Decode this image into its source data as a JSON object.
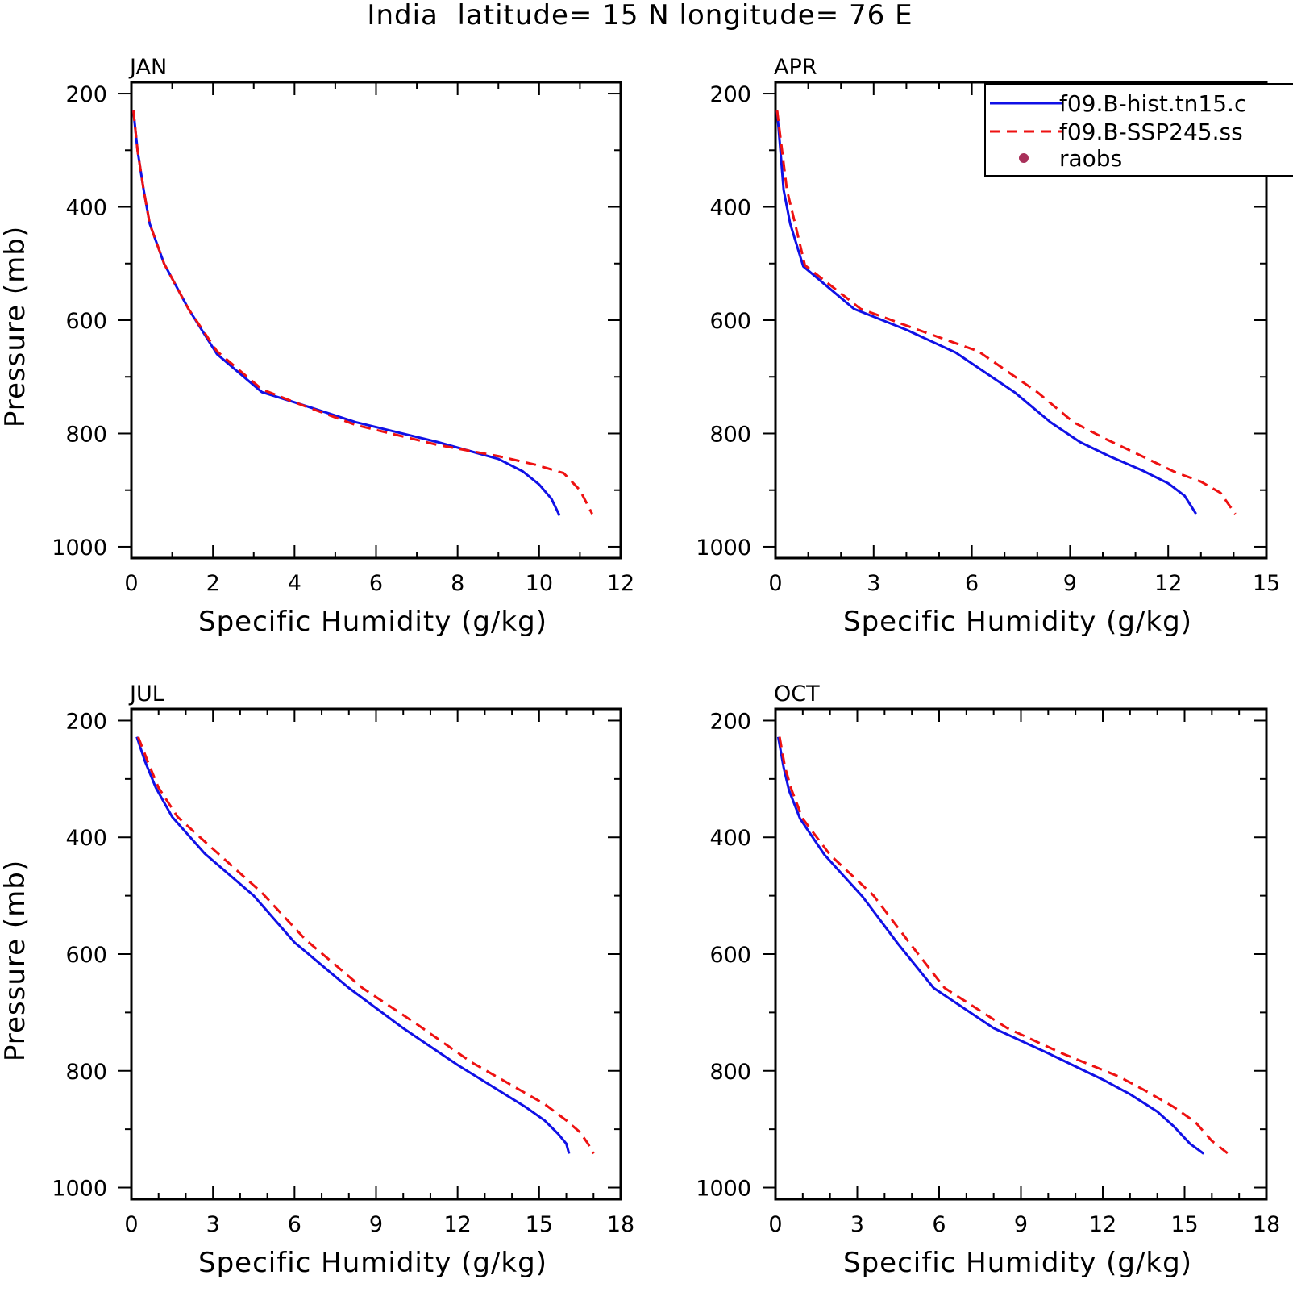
{
  "figure": {
    "title": "India  latitude= 15 N longitude= 76 E",
    "legend": {
      "placement": "top-right of APR panel (clipped at right edge)",
      "entries": [
        {
          "label": "f09.B-hist.tn15.c",
          "style": "solid",
          "color": "#1010e6"
        },
        {
          "label": "f09.B-SSP245.ss",
          "style": "dashed",
          "color": "#ee1111"
        },
        {
          "label": "raobs",
          "style": "dot",
          "color": "#a8305a"
        }
      ]
    }
  },
  "chart_data": [
    {
      "type": "line",
      "panel_label": "JAN",
      "xlabel": "Specific Humidity (g/kg)",
      "ylabel": "Pressure (mb)",
      "xlim": [
        0,
        12
      ],
      "xticks": [
        0,
        2,
        4,
        6,
        8,
        10,
        12
      ],
      "ylim": [
        200,
        1000
      ],
      "yticks": [
        200,
        400,
        600,
        800,
        1000
      ],
      "y_inverted": true,
      "series": [
        {
          "name": "f09.B-hist.tn15.c",
          "style": "solid",
          "color": "#1010e6",
          "x": [
            0.05,
            0.15,
            0.3,
            0.45,
            0.8,
            1.4,
            2.1,
            3.2,
            4.0,
            5.5,
            7.5,
            9.0,
            9.6,
            10.0,
            10.3,
            10.5
          ],
          "y": [
            230,
            300,
            370,
            430,
            500,
            580,
            660,
            727,
            745,
            780,
            815,
            845,
            867,
            890,
            915,
            945
          ]
        },
        {
          "name": "f09.B-SSP245.ss",
          "style": "dashed",
          "color": "#ee1111",
          "x": [
            0.05,
            0.15,
            0.3,
            0.45,
            0.8,
            1.4,
            2.1,
            3.2,
            4.0,
            5.5,
            7.5,
            9.0,
            9.9,
            10.6,
            11.0,
            11.3
          ],
          "y": [
            230,
            300,
            370,
            430,
            500,
            580,
            655,
            722,
            745,
            785,
            820,
            840,
            855,
            870,
            900,
            942
          ]
        }
      ]
    },
    {
      "type": "line",
      "panel_label": "APR",
      "xlabel": "Specific Humidity (g/kg)",
      "ylabel": "",
      "xlim": [
        0,
        15
      ],
      "xticks": [
        0,
        3,
        6,
        9,
        12,
        15
      ],
      "ylim": [
        200,
        1000
      ],
      "yticks": [
        200,
        400,
        600,
        800,
        1000
      ],
      "y_inverted": true,
      "series": [
        {
          "name": "f09.B-hist.tn15.c",
          "style": "solid",
          "color": "#1010e6",
          "x": [
            0.05,
            0.15,
            0.25,
            0.45,
            0.85,
            2.4,
            4.0,
            5.5,
            7.3,
            8.4,
            9.3,
            10.2,
            11.2,
            12.0,
            12.5,
            12.85
          ],
          "y": [
            230,
            300,
            370,
            430,
            505,
            580,
            617,
            657,
            727,
            780,
            815,
            840,
            865,
            888,
            910,
            942
          ]
        },
        {
          "name": "f09.B-SSP245.ss",
          "style": "dashed",
          "color": "#ee1111",
          "x": [
            0.05,
            0.2,
            0.35,
            0.6,
            0.9,
            2.6,
            4.5,
            6.2,
            8.0,
            9.1,
            10.1,
            11.2,
            12.2,
            13.0,
            13.6,
            14.05
          ],
          "y": [
            230,
            300,
            370,
            430,
            503,
            580,
            620,
            655,
            727,
            780,
            810,
            840,
            868,
            885,
            905,
            942
          ]
        }
      ]
    },
    {
      "type": "line",
      "panel_label": "JUL",
      "xlabel": "Specific Humidity (g/kg)",
      "ylabel": "Pressure (mb)",
      "xlim": [
        0,
        18
      ],
      "xticks": [
        0,
        3,
        6,
        9,
        12,
        15,
        18
      ],
      "ylim": [
        200,
        1000
      ],
      "yticks": [
        200,
        400,
        600,
        800,
        1000
      ],
      "y_inverted": true,
      "series": [
        {
          "name": "f09.B-hist.tn15.c",
          "style": "solid",
          "color": "#1010e6",
          "x": [
            0.2,
            0.5,
            0.9,
            1.5,
            2.7,
            4.5,
            6.0,
            8.0,
            10.0,
            12.0,
            14.5,
            15.2,
            15.7,
            16.0,
            16.1
          ],
          "y": [
            228,
            270,
            315,
            365,
            428,
            500,
            580,
            658,
            727,
            790,
            862,
            885,
            908,
            925,
            942
          ]
        },
        {
          "name": "f09.B-SSP245.ss",
          "style": "dashed",
          "color": "#ee1111",
          "x": [
            0.25,
            0.6,
            1.0,
            1.7,
            3.0,
            4.8,
            6.4,
            8.5,
            10.5,
            12.5,
            15.2,
            16.0,
            16.5,
            16.8,
            17.0
          ],
          "y": [
            228,
            270,
            315,
            365,
            420,
            495,
            575,
            658,
            720,
            785,
            857,
            885,
            905,
            925,
            942
          ]
        }
      ]
    },
    {
      "type": "line",
      "panel_label": "OCT",
      "xlabel": "Specific Humidity (g/kg)",
      "ylabel": "",
      "xlim": [
        0,
        18
      ],
      "xticks": [
        0,
        3,
        6,
        9,
        12,
        15,
        18
      ],
      "ylim": [
        200,
        1000
      ],
      "yticks": [
        200,
        400,
        600,
        800,
        1000
      ],
      "y_inverted": true,
      "series": [
        {
          "name": "f09.B-hist.tn15.c",
          "style": "solid",
          "color": "#1010e6",
          "x": [
            0.1,
            0.3,
            0.5,
            0.9,
            1.8,
            3.2,
            4.5,
            5.8,
            8.0,
            10.0,
            12.0,
            13.0,
            14.0,
            14.6,
            15.2,
            15.7
          ],
          "y": [
            228,
            280,
            320,
            368,
            430,
            502,
            583,
            658,
            727,
            770,
            815,
            840,
            870,
            895,
            925,
            942
          ]
        },
        {
          "name": "f09.B-SSP245.ss",
          "style": "dashed",
          "color": "#ee1111",
          "x": [
            0.15,
            0.35,
            0.6,
            1.0,
            2.0,
            3.6,
            4.9,
            6.2,
            8.5,
            10.5,
            12.6,
            13.6,
            14.6,
            15.4,
            16.0,
            16.6
          ],
          "y": [
            228,
            280,
            320,
            368,
            430,
            500,
            580,
            658,
            727,
            770,
            810,
            835,
            862,
            888,
            920,
            942
          ]
        }
      ]
    }
  ]
}
